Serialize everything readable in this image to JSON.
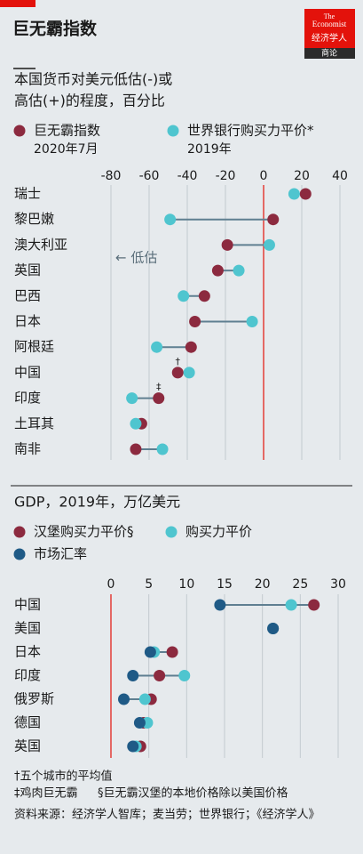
{
  "header": {
    "title": "巨无霸指数",
    "logo": [
      "The",
      "Economist"
    ],
    "logo_cn": "经济学人",
    "logo_tag": "商论"
  },
  "chart_data": [
    {
      "type": "dot",
      "title": [
        "本国货币对美元低估(-)或",
        "高估(+)的程度，百分比"
      ],
      "categories": [
        "瑞士",
        "黎巴嫩",
        "澳大利亚",
        "英国",
        "巴西",
        "日本",
        "阿根廷",
        "中国",
        "印度",
        "土耳其",
        "南非"
      ],
      "series": [
        {
          "name": "巨无霸指数",
          "period": "2020年7月",
          "color": "#8c2a3f",
          "values": [
            22,
            5,
            -19,
            -24,
            -31,
            -36,
            -38,
            -45,
            -55,
            -64,
            -67
          ],
          "symbols": [
            null,
            null,
            null,
            null,
            null,
            null,
            null,
            "†",
            "‡",
            null,
            null
          ]
        },
        {
          "name": "世界银行购买力平价*",
          "period": "2019年",
          "color": "#4fc5cf",
          "values": [
            16,
            -49,
            3,
            -13,
            -42,
            -6,
            -56,
            -39,
            -69,
            -67,
            -53
          ]
        }
      ],
      "xlim": [
        -80,
        40
      ],
      "xticks": [
        -80,
        -60,
        -40,
        -20,
        0,
        20,
        40
      ],
      "refline": 0,
      "grid": true,
      "annotations": [
        {
          "text": "← 低估"
        }
      ]
    },
    {
      "type": "dot",
      "title": [
        "GDP，2019年，万亿美元"
      ],
      "categories": [
        "中国",
        "美国",
        "日本",
        "印度",
        "俄罗斯",
        "德国",
        "英国"
      ],
      "series": [
        {
          "name": "汉堡购买力平价§",
          "color": "#8c2a3f",
          "values": [
            26.8,
            21.4,
            8.1,
            6.4,
            5.3,
            4.3,
            3.9
          ]
        },
        {
          "name": "购买力平价",
          "color": "#4fc5cf",
          "values": [
            23.8,
            21.4,
            5.7,
            9.7,
            4.5,
            4.8,
            3.3
          ]
        },
        {
          "name": "市场汇率",
          "color": "#1f5a86",
          "values": [
            14.4,
            21.4,
            5.2,
            2.9,
            1.7,
            3.8,
            2.9
          ]
        }
      ],
      "xlim": [
        0,
        30
      ],
      "xticks": [
        0,
        5,
        10,
        15,
        20,
        25,
        30
      ],
      "refline": 0,
      "grid": true
    }
  ],
  "footnotes": [
    "†五个城市的平均值",
    "‡鸡肉巨无霸",
    "§巨无霸汉堡的本地价格除以美国价格"
  ],
  "source": "资料来源：经济学人智库；麦当劳；世界银行；《经济学人》"
}
